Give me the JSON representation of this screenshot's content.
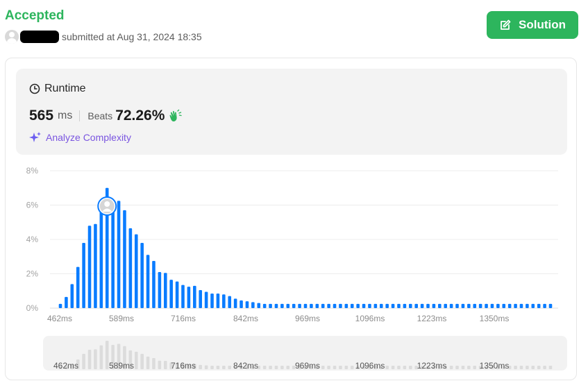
{
  "status": "Accepted",
  "submission": {
    "text": "submitted at Aug 31, 2024 18:35"
  },
  "solution_button": {
    "label": "Solution"
  },
  "runtime": {
    "title": "Runtime",
    "value": "565",
    "unit": "ms",
    "beats_label": "Beats",
    "beats_value": "72.26%"
  },
  "analyze": {
    "label": "Analyze Complexity"
  },
  "colors": {
    "accent": "#2db55d",
    "bar": "#0a7cff",
    "bar_overview": "#dcdcdc",
    "analyze": "#7a55e0"
  },
  "chart_data": {
    "type": "bar",
    "title": "",
    "xlabel": "",
    "ylabel": "",
    "ylim": [
      0,
      8
    ],
    "y_ticks": [
      "0%",
      "2%",
      "4%",
      "6%",
      "8%"
    ],
    "x_tick_labels": [
      "462ms",
      "589ms",
      "716ms",
      "842ms",
      "969ms",
      "1096ms",
      "1223ms",
      "1350ms"
    ],
    "values": [
      0.25,
      0.65,
      1.4,
      2.4,
      3.8,
      4.8,
      4.9,
      5.9,
      7.0,
      6.0,
      6.25,
      5.7,
      4.65,
      4.3,
      3.8,
      3.1,
      2.75,
      2.1,
      2.05,
      1.65,
      1.55,
      1.35,
      1.25,
      1.3,
      1.05,
      0.95,
      0.85,
      0.85,
      0.8,
      0.7,
      0.55,
      0.45,
      0.4,
      0.35,
      0.3,
      0.25,
      0.25,
      0.25,
      0.25,
      0.25,
      0.25,
      0.25,
      0.25,
      0.25,
      0.25,
      0.25,
      0.25,
      0.25,
      0.25,
      0.25,
      0.25,
      0.25,
      0.25,
      0.25,
      0.25,
      0.25,
      0.25,
      0.25,
      0.25,
      0.25,
      0.25,
      0.25,
      0.25,
      0.25,
      0.25,
      0.25,
      0.25,
      0.25,
      0.25,
      0.25,
      0.25,
      0.25,
      0.25,
      0.25,
      0.25,
      0.25,
      0.25,
      0.25,
      0.25,
      0.25,
      0.25,
      0.25,
      0.25,
      0.25,
      0.25
    ],
    "marker_index": 8,
    "grid": true,
    "legend": "none"
  }
}
